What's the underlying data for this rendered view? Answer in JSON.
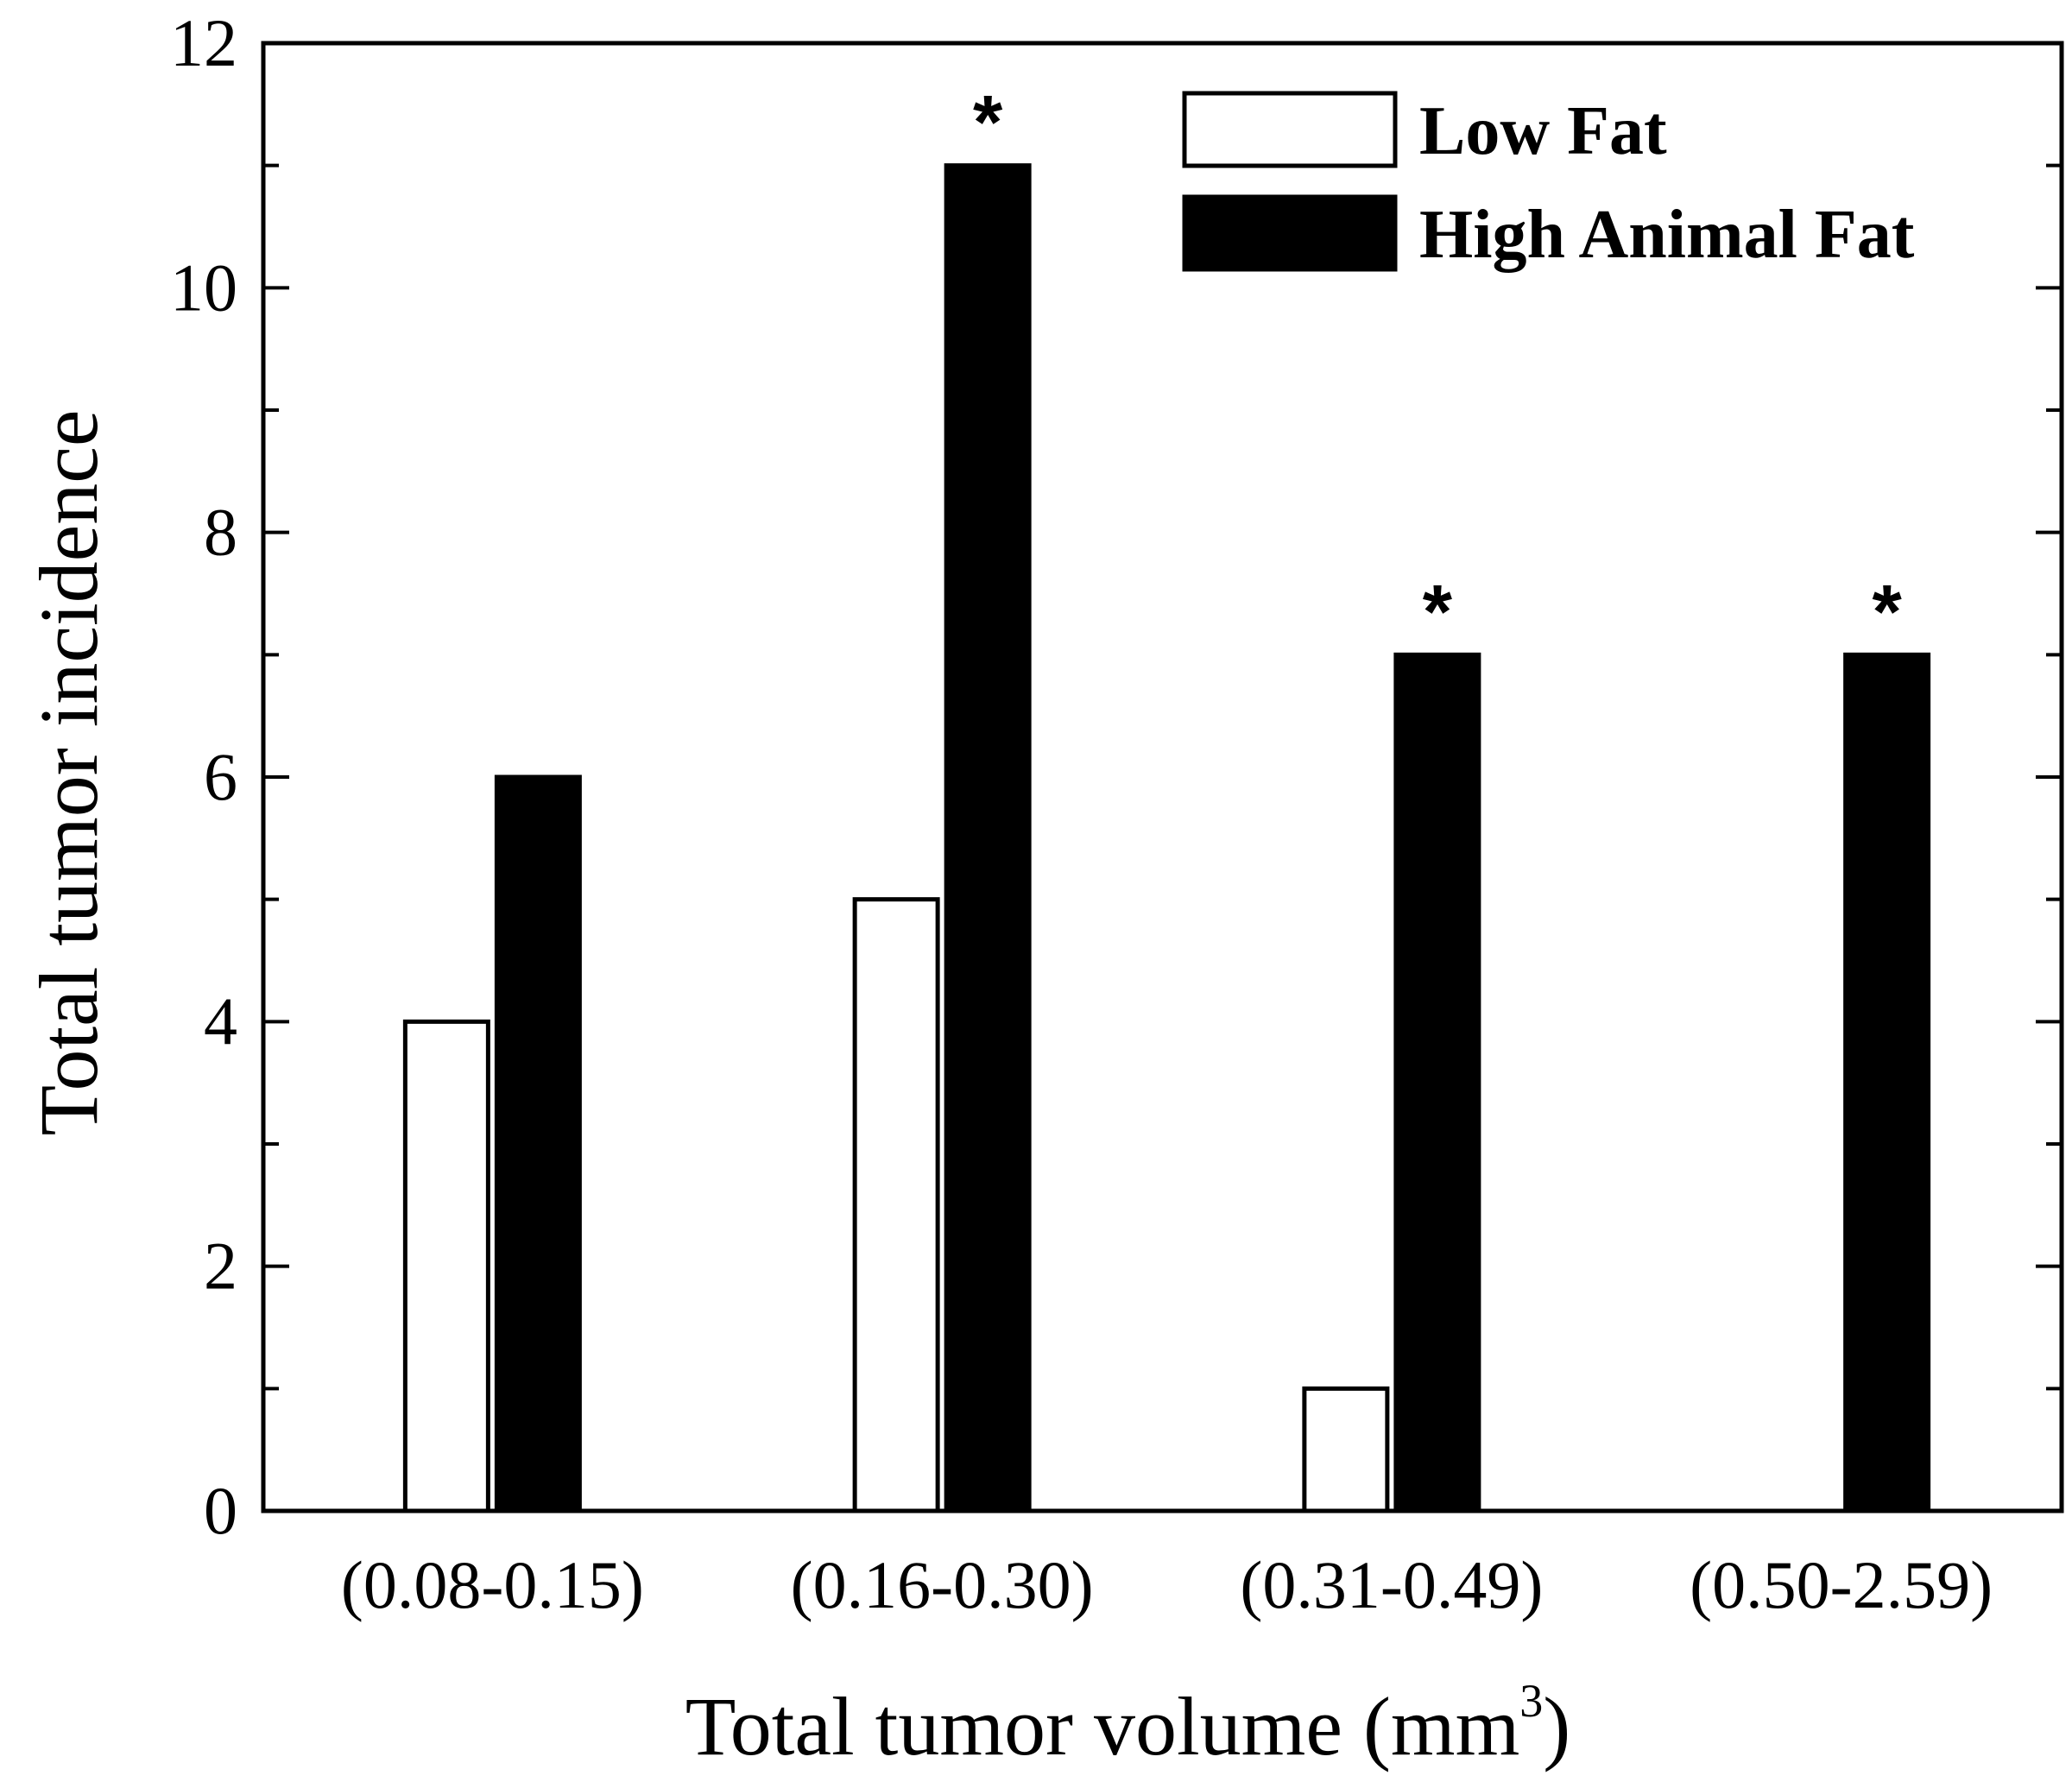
{
  "chart_data": {
    "type": "bar",
    "title": "",
    "xlabel": "Total tumor volume (mm",
    "xlabel_superscript": "3",
    "xlabel_suffix": ")",
    "ylabel": "Total tumor incidence",
    "ylim": [
      0,
      12
    ],
    "yticks": [
      "0",
      "2",
      "4",
      "6",
      "8",
      "10",
      "12"
    ],
    "categories": [
      "(0.08-0.15)",
      "(0.16-0.30)",
      "(0.31-0.49)",
      "(0.50-2.59)"
    ],
    "series": [
      {
        "name": "Low Fat",
        "values": [
          4,
          5,
          1,
          0
        ],
        "color": "#ffffff",
        "stroke": "#000000"
      },
      {
        "name": "High Animal Fat",
        "values": [
          6,
          11,
          7,
          7
        ],
        "color": "#000000",
        "stroke": "#000000"
      }
    ],
    "significance_marker": "*",
    "significant_categories": [
      1,
      2,
      3
    ],
    "legend_position": "top-right",
    "grid": false
  }
}
